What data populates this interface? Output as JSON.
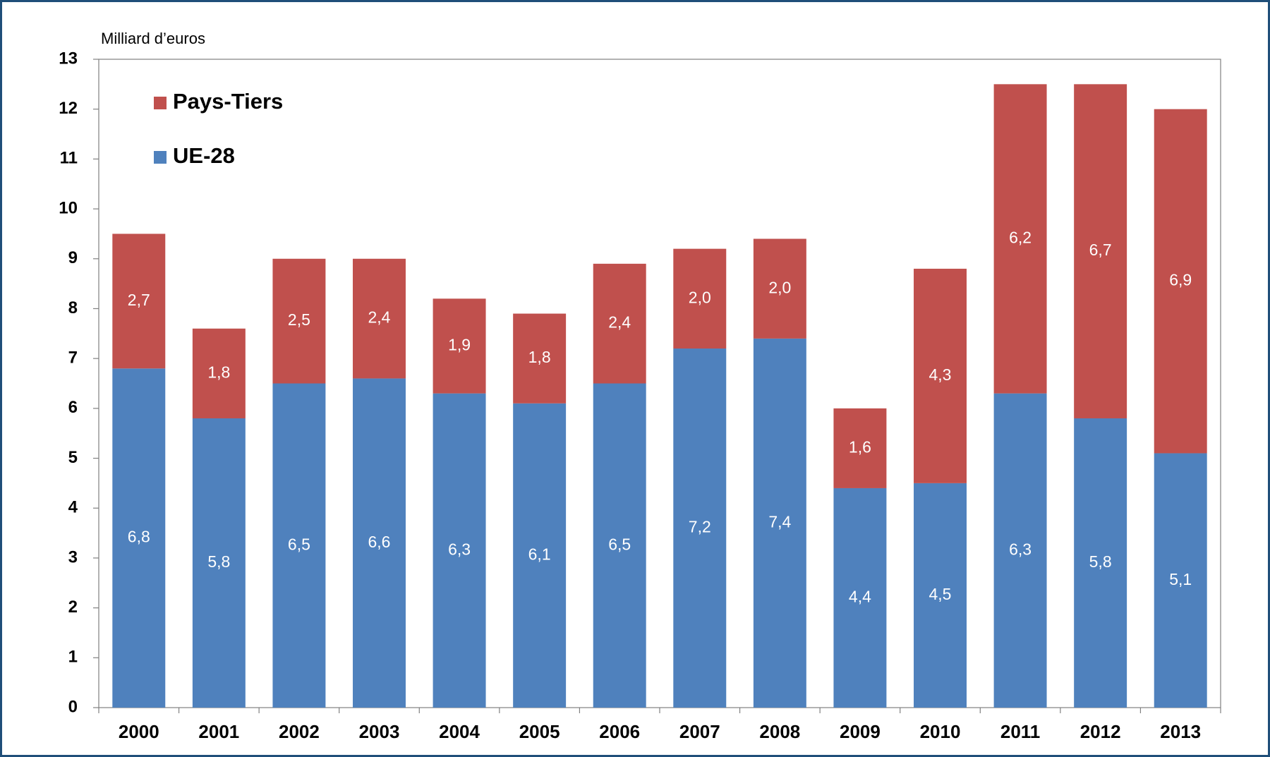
{
  "chart_data": {
    "type": "stacked_bar",
    "y_axis_label": "Milliard d’euros",
    "categories": [
      "2000",
      "2001",
      "2002",
      "2003",
      "2004",
      "2005",
      "2006",
      "2007",
      "2008",
      "2009",
      "2010",
      "2011",
      "2012",
      "2013"
    ],
    "series": [
      {
        "name": "UE-28",
        "color": "#4f81bd",
        "values": [
          6.8,
          5.8,
          6.5,
          6.6,
          6.3,
          6.1,
          6.5,
          7.2,
          7.4,
          4.4,
          4.5,
          6.3,
          5.8,
          5.1
        ],
        "value_labels": [
          "6,8",
          "5,8",
          "6,5",
          "6,6",
          "6,3",
          "6,1",
          "6,5",
          "7,2",
          "7,4",
          "4,4",
          "4,5",
          "6,3",
          "5,8",
          "5,1"
        ]
      },
      {
        "name": "Pays-Tiers",
        "color": "#c0504d",
        "values": [
          2.7,
          1.8,
          2.5,
          2.4,
          1.9,
          1.8,
          2.4,
          2.0,
          2.0,
          1.6,
          4.3,
          6.2,
          6.7,
          6.9
        ],
        "value_labels": [
          "2,7",
          "1,8",
          "2,5",
          "2,4",
          "1,9",
          "1,8",
          "2,4",
          "2,0",
          "2,0",
          "1,6",
          "4,3",
          "6,2",
          "6,7",
          "6,9"
        ]
      }
    ],
    "ylim": [
      0,
      13
    ],
    "yticks": [
      0,
      1,
      2,
      3,
      4,
      5,
      6,
      7,
      8,
      9,
      10,
      11,
      12,
      13
    ],
    "legend": "upper left"
  }
}
